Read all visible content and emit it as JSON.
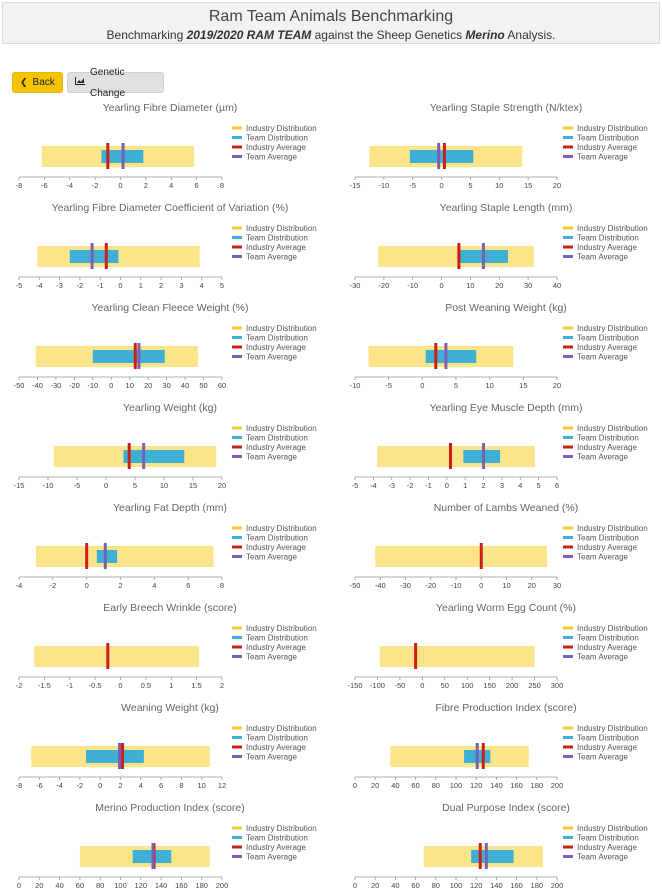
{
  "header": {
    "title": "Ram Team Animals Benchmarking",
    "subtitle_prefix": "Benchmarking ",
    "subtitle_team": "2019/2020 RAM TEAM",
    "subtitle_mid": " against the Sheep Genetics ",
    "subtitle_analysis": "Merino",
    "subtitle_suffix": " Analysis."
  },
  "buttons": {
    "back": "Back",
    "genetic_change": "Genetic Change"
  },
  "legend": [
    "Industry Distribution",
    "Team Distribution",
    "Industry Average",
    "Team Average"
  ],
  "colors": {
    "industry_distribution": "#fce588",
    "team_distribution": "#3eb0d5",
    "industry_average": "#cc1f1a",
    "team_average": "#7a5fb5",
    "legend_industry": "#f8c933",
    "legend_team": "#3eb0d5"
  },
  "chart_data": [
    {
      "type": "bar",
      "title": "Yearling Fibre Diameter (µm)",
      "xlim": [
        -8,
        8
      ],
      "ticks": [
        -8,
        -6,
        -4,
        -2,
        0,
        2,
        4,
        6,
        8
      ],
      "industry_distribution": [
        -6.2,
        5.8
      ],
      "team_distribution": [
        -1.5,
        1.8
      ],
      "industry_average": -1.0,
      "team_average": 0.2
    },
    {
      "type": "bar",
      "title": "Yearling Staple Strength (N/ktex)",
      "xlim": [
        -15,
        20
      ],
      "ticks": [
        -15,
        -10,
        -5,
        0,
        5,
        10,
        15,
        20
      ],
      "industry_distribution": [
        -12.5,
        14
      ],
      "team_distribution": [
        -5.5,
        5.5
      ],
      "industry_average": 0.5,
      "team_average": -0.5
    },
    {
      "type": "bar",
      "title": "Yearling Fibre Diameter Coefficient of Variation (%)",
      "xlim": [
        -5,
        5
      ],
      "ticks": [
        -5,
        -4,
        -3,
        -2,
        -1,
        0,
        1,
        2,
        3,
        4,
        5
      ],
      "industry_distribution": [
        -4.1,
        3.9
      ],
      "team_distribution": [
        -2.5,
        -0.1
      ],
      "industry_average": -0.7,
      "team_average": -1.4
    },
    {
      "type": "bar",
      "title": "Yearling Staple Length (mm)",
      "xlim": [
        -30,
        40
      ],
      "ticks": [
        -30,
        -20,
        -10,
        0,
        10,
        20,
        30,
        40
      ],
      "industry_distribution": [
        -22,
        32
      ],
      "team_distribution": [
        6,
        23
      ],
      "industry_average": 6,
      "team_average": 14.5
    },
    {
      "type": "bar",
      "title": "Yearling Clean Fleece Weight (%)",
      "xlim": [
        -50,
        60
      ],
      "ticks": [
        -50,
        -40,
        -30,
        -20,
        -10,
        0,
        10,
        20,
        30,
        40,
        50,
        60
      ],
      "industry_distribution": [
        -41,
        47
      ],
      "team_distribution": [
        -10,
        29
      ],
      "industry_average": 13,
      "team_average": 15
    },
    {
      "type": "bar",
      "title": "Post Weaning Weight (kg)",
      "xlim": [
        -10,
        20
      ],
      "ticks": [
        -10,
        -5,
        0,
        5,
        10,
        15,
        20
      ],
      "industry_distribution": [
        -8,
        13.5
      ],
      "team_distribution": [
        0.5,
        8
      ],
      "industry_average": 2,
      "team_average": 3.5
    },
    {
      "type": "bar",
      "title": "Yearling Weight (kg)",
      "xlim": [
        -15,
        20
      ],
      "ticks": [
        -15,
        -10,
        -5,
        0,
        5,
        10,
        15,
        20
      ],
      "industry_distribution": [
        -9,
        19
      ],
      "team_distribution": [
        3,
        13.5
      ],
      "industry_average": 4,
      "team_average": 6.5
    },
    {
      "type": "bar",
      "title": "Yearling Eye Muscle Depth (mm)",
      "xlim": [
        -5,
        6
      ],
      "ticks": [
        -5,
        -4,
        -3,
        -2,
        -1,
        0,
        1,
        2,
        3,
        4,
        5,
        6
      ],
      "industry_distribution": [
        -3.8,
        4.8
      ],
      "team_distribution": [
        0.9,
        2.9
      ],
      "industry_average": 0.2,
      "team_average": 2.0
    },
    {
      "type": "bar",
      "title": "Yearling Fat Depth (mm)",
      "xlim": [
        -4,
        8
      ],
      "ticks": [
        -4,
        -2,
        0,
        2,
        4,
        6,
        8
      ],
      "industry_distribution": [
        -3,
        7.5
      ],
      "team_distribution": [
        0.6,
        1.8
      ],
      "industry_average": 0,
      "team_average": 1.1
    },
    {
      "type": "bar",
      "title": "Number of Lambs Weaned (%)",
      "xlim": [
        -50,
        30
      ],
      "ticks": [
        -50,
        -40,
        -30,
        -20,
        -10,
        0,
        10,
        20,
        30
      ],
      "industry_distribution": [
        -42,
        26
      ],
      "team_distribution": null,
      "industry_average": 0,
      "team_average": null
    },
    {
      "type": "bar",
      "title": "Early Breech Wrinkle (score)",
      "xlim": [
        -2,
        2
      ],
      "ticks": [
        -2,
        -1.5,
        -1,
        -0.5,
        0,
        0.5,
        1,
        1.5,
        2
      ],
      "tick_labels": [
        "-2",
        "-1.5",
        "-1",
        "-0.5",
        "0",
        "0.5",
        "1",
        "1.5",
        "2"
      ],
      "industry_distribution": [
        -1.7,
        1.55
      ],
      "team_distribution": null,
      "industry_average": -0.25,
      "team_average": null
    },
    {
      "type": "bar",
      "title": "Yearling Worm Egg Count (%)",
      "xlim": [
        -150,
        300
      ],
      "ticks": [
        -150,
        -100,
        -50,
        0,
        50,
        100,
        150,
        200,
        250,
        300
      ],
      "industry_distribution": [
        -95,
        250
      ],
      "team_distribution": null,
      "industry_average": -15,
      "team_average": null
    },
    {
      "type": "bar",
      "title": "Weaning Weight (kg)",
      "xlim": [
        -8,
        12
      ],
      "ticks": [
        -8,
        -6,
        -4,
        -2,
        0,
        2,
        4,
        6,
        8,
        10,
        12
      ],
      "industry_distribution": [
        -6.8,
        10.8
      ],
      "team_distribution": [
        -1.4,
        4.3
      ],
      "industry_average": 2.2,
      "team_average": 1.9
    },
    {
      "type": "bar",
      "title": "Fibre Production Index (score)",
      "xlim": [
        0,
        200
      ],
      "ticks": [
        0,
        20,
        40,
        60,
        80,
        100,
        120,
        140,
        160,
        180,
        200
      ],
      "industry_distribution": [
        35,
        172
      ],
      "team_distribution": [
        108,
        134
      ],
      "industry_average": 127,
      "team_average": 121
    },
    {
      "type": "bar",
      "title": "Merino Production Index (score)",
      "xlim": [
        0,
        200
      ],
      "ticks": [
        0,
        20,
        40,
        60,
        80,
        100,
        120,
        140,
        160,
        180,
        200
      ],
      "industry_distribution": [
        60,
        188
      ],
      "team_distribution": [
        112,
        150
      ],
      "industry_average": 133,
      "team_average": 132
    },
    {
      "type": "bar",
      "title": "Dual Purpose Index (score)",
      "xlim": [
        0,
        200
      ],
      "ticks": [
        0,
        20,
        40,
        60,
        80,
        100,
        120,
        140,
        160,
        180,
        200
      ],
      "industry_distribution": [
        68,
        186
      ],
      "team_distribution": [
        115,
        157
      ],
      "industry_average": 124,
      "team_average": 130
    }
  ]
}
